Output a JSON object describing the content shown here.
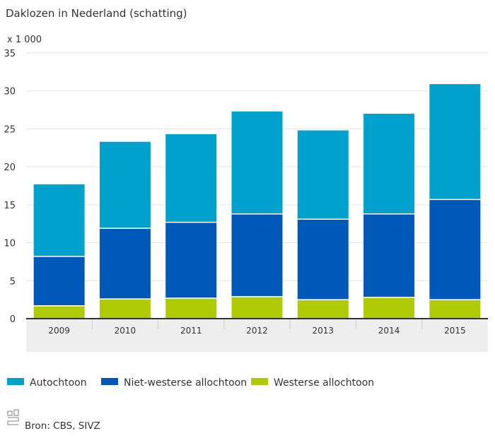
{
  "chart_data": {
    "type": "bar",
    "stacked": true,
    "title": "Daklozen in Nederland (schatting)",
    "unit_label": "x 1 000",
    "categories": [
      "2009",
      "2010",
      "2011",
      "2012",
      "2013",
      "2014",
      "2015"
    ],
    "series": [
      {
        "name": "Westerse allochtoon",
        "color": "#afcb05",
        "values": [
          1.7,
          2.6,
          2.7,
          2.9,
          2.5,
          2.8,
          2.5
        ]
      },
      {
        "name": "Niet-westerse allochtoon",
        "color": "#0058b8",
        "values": [
          6.5,
          9.3,
          10.0,
          10.9,
          10.6,
          11.0,
          13.2
        ]
      },
      {
        "name": "Autochtoon",
        "color": "#00a1cd",
        "values": [
          9.5,
          11.4,
          11.6,
          13.5,
          11.7,
          13.2,
          15.2
        ]
      }
    ],
    "legend_order": [
      "Autochtoon",
      "Niet-westerse allochtoon",
      "Westerse allochtoon"
    ],
    "ylim": [
      0,
      35
    ],
    "yticks": [
      "0",
      "5",
      "10",
      "15",
      "20",
      "25",
      "30",
      "35"
    ],
    "grid": true,
    "legend_position": "bottom-left",
    "source": "Bron: CBS, SIVZ"
  }
}
